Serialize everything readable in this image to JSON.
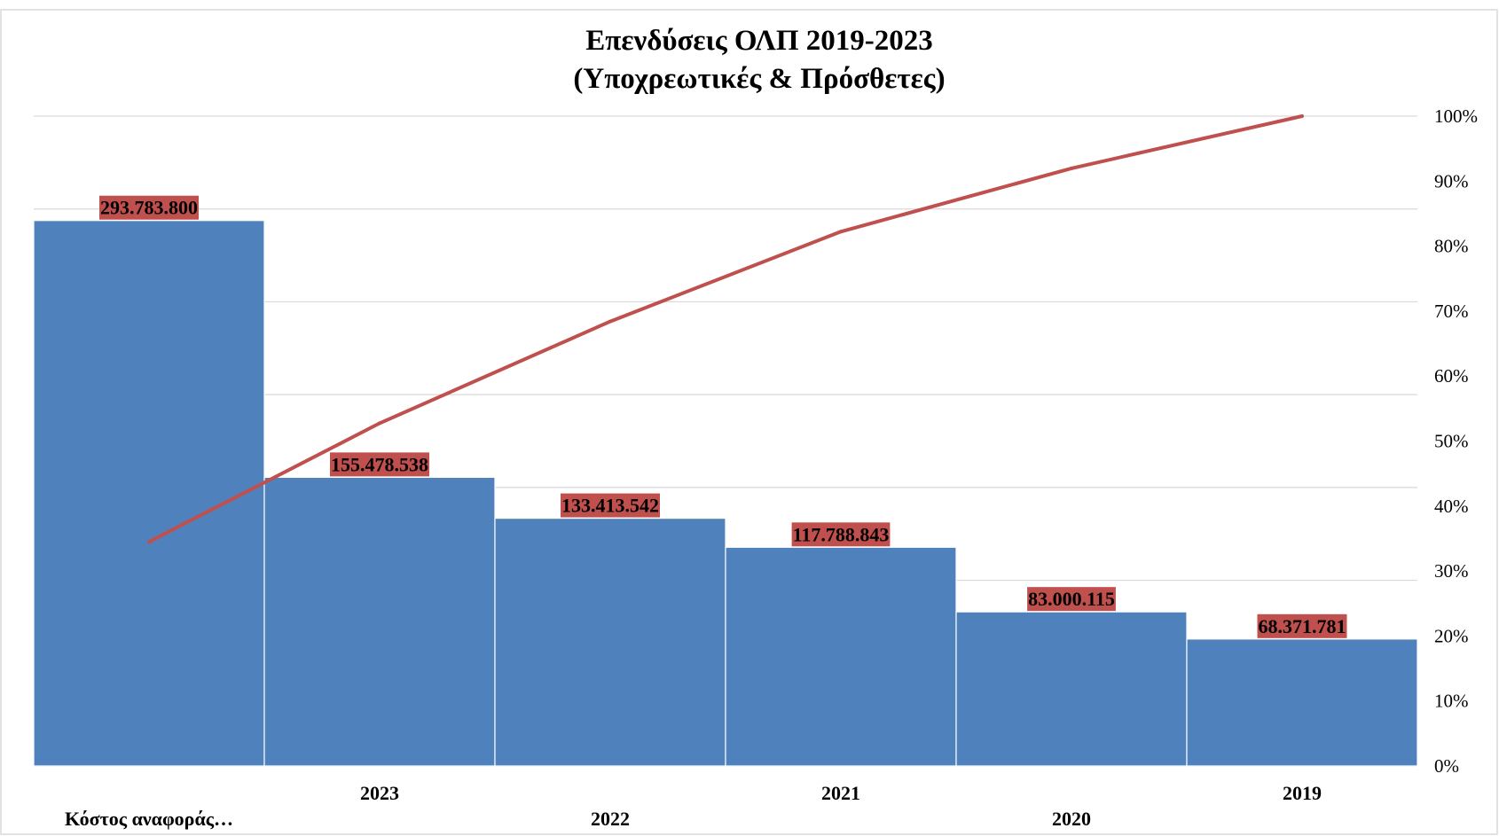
{
  "chart_data": {
    "type": "bar",
    "title": "Επενδύσεις ΟΛΠ 2019-2023",
    "subtitle": "(Υποχρεωτικές & Πρόσθετες)",
    "xlabel": "",
    "ylabel": "",
    "categories": [
      "Κόστος αναφοράς…",
      "2023",
      "2022",
      "2021",
      "2020",
      "2019"
    ],
    "series": [
      {
        "type": "bar",
        "axis": "primary",
        "values": [
          293783800,
          155478538,
          133413542,
          117788843,
          83000115,
          68371781
        ],
        "data_labels": [
          "293.783.800",
          "155.478.538",
          "133.413.542",
          "117.788.843",
          "83.000.115",
          "68.371.781"
        ],
        "color": "#4F81BD",
        "label_fill": "#C0504D"
      },
      {
        "type": "line",
        "axis": "secondary",
        "values": [
          34.49,
          52.74,
          68.4,
          82.23,
          91.97,
          100
        ],
        "color": "#C0504D"
      }
    ],
    "y_axis": {
      "min": 0,
      "max": 350000000,
      "step": 50000000,
      "tick_labels_visible": false
    },
    "y2_axis": {
      "min": 0,
      "max": 100,
      "tick_labels": [
        "0%",
        "10%",
        "20%",
        "30%",
        "40%",
        "50%",
        "60%",
        "70%",
        "80%",
        "90%",
        "100%"
      ]
    },
    "grid": true,
    "legend": "none",
    "colors": {
      "gridline": "#D9D9D9",
      "axis": "#BFBFBF",
      "border": "#D9D9D9"
    }
  }
}
